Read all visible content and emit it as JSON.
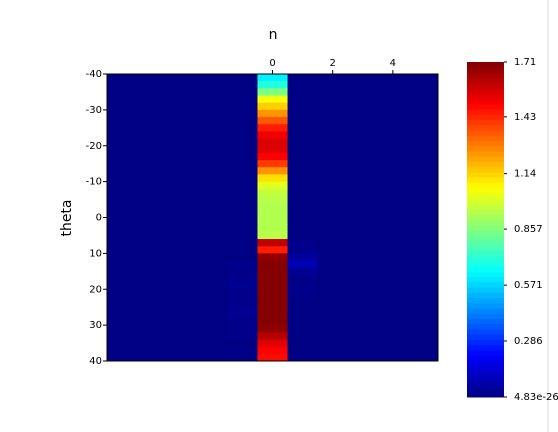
{
  "chart_data": {
    "type": "heatmap",
    "xlabel": "n",
    "ylabel": "theta",
    "colormap": "jet",
    "x": [
      -5,
      -4,
      -3,
      -2,
      -1,
      0,
      1,
      2,
      3,
      4,
      5
    ],
    "y": [
      -39,
      -37,
      -35,
      -33,
      -31,
      -29,
      -27,
      -25,
      -23,
      -21,
      -19,
      -17,
      -15,
      -13,
      -11,
      -9,
      -7,
      -5,
      -3,
      -1,
      1,
      3,
      5,
      7,
      9,
      11,
      13,
      15,
      17,
      19,
      21,
      23,
      25,
      27,
      29,
      31,
      33,
      35,
      37,
      39
    ],
    "z": [
      [
        0.01,
        0.01,
        0.01,
        0.01,
        0.01,
        0.62,
        0.01,
        0.01,
        0.01,
        0.01,
        0.01
      ],
      [
        0.01,
        0.01,
        0.01,
        0.01,
        0.01,
        0.7,
        0.01,
        0.01,
        0.01,
        0.01,
        0.01
      ],
      [
        0.01,
        0.01,
        0.01,
        0.01,
        0.01,
        0.85,
        0.01,
        0.01,
        0.01,
        0.01,
        0.01
      ],
      [
        0.01,
        0.01,
        0.01,
        0.01,
        0.01,
        1.05,
        0.01,
        0.01,
        0.01,
        0.01,
        0.01
      ],
      [
        0.01,
        0.01,
        0.01,
        0.01,
        0.01,
        1.15,
        0.01,
        0.01,
        0.01,
        0.01,
        0.01
      ],
      [
        0.01,
        0.01,
        0.01,
        0.01,
        0.01,
        1.25,
        0.01,
        0.01,
        0.01,
        0.01,
        0.01
      ],
      [
        0.01,
        0.01,
        0.01,
        0.01,
        0.01,
        1.35,
        0.01,
        0.01,
        0.01,
        0.01,
        0.01
      ],
      [
        0.01,
        0.01,
        0.01,
        0.01,
        0.01,
        1.45,
        0.01,
        0.01,
        0.01,
        0.01,
        0.01
      ],
      [
        0.01,
        0.01,
        0.01,
        0.01,
        0.01,
        1.52,
        0.01,
        0.01,
        0.01,
        0.01,
        0.01
      ],
      [
        0.01,
        0.01,
        0.01,
        0.01,
        0.01,
        1.56,
        0.01,
        0.01,
        0.01,
        0.01,
        0.01
      ],
      [
        0.01,
        0.01,
        0.01,
        0.01,
        0.01,
        1.55,
        0.01,
        0.01,
        0.01,
        0.01,
        0.01
      ],
      [
        0.01,
        0.01,
        0.01,
        0.01,
        0.01,
        1.5,
        0.01,
        0.01,
        0.01,
        0.01,
        0.01
      ],
      [
        0.01,
        0.01,
        0.01,
        0.01,
        0.01,
        1.4,
        0.01,
        0.01,
        0.01,
        0.01,
        0.01
      ],
      [
        0.01,
        0.01,
        0.01,
        0.01,
        0.01,
        1.25,
        0.01,
        0.01,
        0.01,
        0.01,
        0.01
      ],
      [
        0.01,
        0.01,
        0.01,
        0.01,
        0.01,
        1.12,
        0.01,
        0.01,
        0.01,
        0.01,
        0.01
      ],
      [
        0.01,
        0.01,
        0.01,
        0.01,
        0.01,
        1.02,
        0.01,
        0.01,
        0.01,
        0.01,
        0.01
      ],
      [
        0.01,
        0.01,
        0.01,
        0.01,
        0.01,
        0.97,
        0.01,
        0.01,
        0.01,
        0.01,
        0.01
      ],
      [
        0.01,
        0.01,
        0.01,
        0.01,
        0.01,
        0.95,
        0.01,
        0.01,
        0.01,
        0.01,
        0.01
      ],
      [
        0.01,
        0.01,
        0.01,
        0.01,
        0.01,
        0.94,
        0.01,
        0.01,
        0.01,
        0.01,
        0.01
      ],
      [
        0.01,
        0.01,
        0.01,
        0.01,
        0.01,
        0.94,
        0.01,
        0.01,
        0.01,
        0.01,
        0.01
      ],
      [
        0.01,
        0.01,
        0.01,
        0.01,
        0.01,
        0.94,
        0.01,
        0.01,
        0.01,
        0.01,
        0.01
      ],
      [
        0.01,
        0.01,
        0.01,
        0.01,
        0.01,
        0.94,
        0.01,
        0.01,
        0.01,
        0.01,
        0.01
      ],
      [
        0.01,
        0.01,
        0.01,
        0.01,
        0.01,
        0.95,
        0.01,
        0.01,
        0.01,
        0.01,
        0.01
      ],
      [
        0.01,
        0.01,
        0.01,
        0.01,
        0.01,
        1.6,
        0.02,
        0.01,
        0.01,
        0.01,
        0.01
      ],
      [
        0.01,
        0.01,
        0.01,
        0.01,
        0.01,
        1.45,
        0.02,
        0.01,
        0.01,
        0.01,
        0.01
      ],
      [
        0.01,
        0.01,
        0.01,
        0.01,
        0.01,
        1.68,
        0.05,
        0.01,
        0.01,
        0.01,
        0.01
      ],
      [
        0.01,
        0.01,
        0.01,
        0.01,
        0.02,
        1.7,
        0.09,
        0.01,
        0.01,
        0.01,
        0.01
      ],
      [
        0.01,
        0.01,
        0.01,
        0.01,
        0.02,
        1.7,
        0.03,
        0.01,
        0.01,
        0.01,
        0.01
      ],
      [
        0.01,
        0.01,
        0.01,
        0.01,
        0.02,
        1.7,
        0.02,
        0.01,
        0.01,
        0.01,
        0.01
      ],
      [
        0.01,
        0.01,
        0.01,
        0.01,
        0.03,
        1.7,
        0.02,
        0.01,
        0.01,
        0.01,
        0.01
      ],
      [
        0.01,
        0.01,
        0.01,
        0.01,
        0.02,
        1.7,
        0.02,
        0.01,
        0.01,
        0.01,
        0.01
      ],
      [
        0.01,
        0.01,
        0.01,
        0.01,
        0.02,
        1.7,
        0.01,
        0.01,
        0.01,
        0.01,
        0.01
      ],
      [
        0.01,
        0.01,
        0.01,
        0.01,
        0.02,
        1.7,
        0.01,
        0.01,
        0.01,
        0.01,
        0.01
      ],
      [
        0.01,
        0.01,
        0.01,
        0.01,
        0.03,
        1.7,
        0.01,
        0.01,
        0.01,
        0.01,
        0.01
      ],
      [
        0.01,
        0.01,
        0.01,
        0.01,
        0.02,
        1.7,
        0.01,
        0.01,
        0.01,
        0.01,
        0.01
      ],
      [
        0.01,
        0.01,
        0.01,
        0.01,
        0.02,
        1.68,
        0.01,
        0.01,
        0.01,
        0.01,
        0.01
      ],
      [
        0.01,
        0.01,
        0.01,
        0.01,
        0.02,
        1.62,
        0.01,
        0.01,
        0.01,
        0.01,
        0.01
      ],
      [
        0.01,
        0.01,
        0.01,
        0.01,
        0.01,
        1.55,
        0.01,
        0.01,
        0.01,
        0.01,
        0.01
      ],
      [
        0.01,
        0.01,
        0.01,
        0.01,
        0.01,
        1.5,
        0.01,
        0.01,
        0.01,
        0.01,
        0.01
      ],
      [
        0.01,
        0.01,
        0.01,
        0.01,
        0.01,
        1.48,
        0.01,
        0.01,
        0.01,
        0.01,
        0.01
      ]
    ],
    "xlim": [
      -5.5,
      5.5
    ],
    "xticks": [
      0,
      2,
      4
    ],
    "ylim": [
      -40,
      40
    ],
    "yreversed": true,
    "yticks": [
      -40,
      -30,
      -20,
      -10,
      0,
      10,
      20,
      30,
      40
    ],
    "clim": [
      4.83e-26,
      1.71
    ],
    "cticks": [
      {
        "value": 4.83e-26,
        "label": "4.83e-26"
      },
      0.286,
      0.571,
      0.857,
      1.14,
      1.43,
      1.71
    ]
  }
}
